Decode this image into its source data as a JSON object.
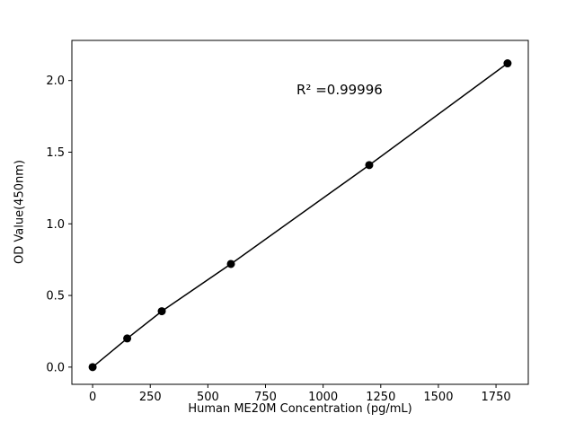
{
  "chart_data": {
    "type": "line",
    "title": "",
    "xlabel": "Human ME20M Concentration (pg/mL)",
    "ylabel": "OD Value(450nm)",
    "annotation": "R² =0.99996",
    "x": [
      0,
      150,
      300,
      600,
      1200,
      1800
    ],
    "y": [
      0.0,
      0.2,
      0.39,
      0.72,
      1.41,
      2.12
    ],
    "xticks": [
      0,
      250,
      500,
      750,
      1000,
      1250,
      1500,
      1750
    ],
    "ytick_labels": [
      "0.0",
      "0.5",
      "1.0",
      "1.5",
      "2.0"
    ],
    "ytick_values": [
      0,
      0.5,
      1.0,
      1.5,
      2.0
    ],
    "xlim": [
      -90,
      1890
    ],
    "ylim": [
      -0.12,
      2.28
    ],
    "line_color": "#000000",
    "marker_color": "#000000",
    "marker_style": "filled-circle",
    "background": "#ffffff",
    "grid": false,
    "legend": "none"
  }
}
